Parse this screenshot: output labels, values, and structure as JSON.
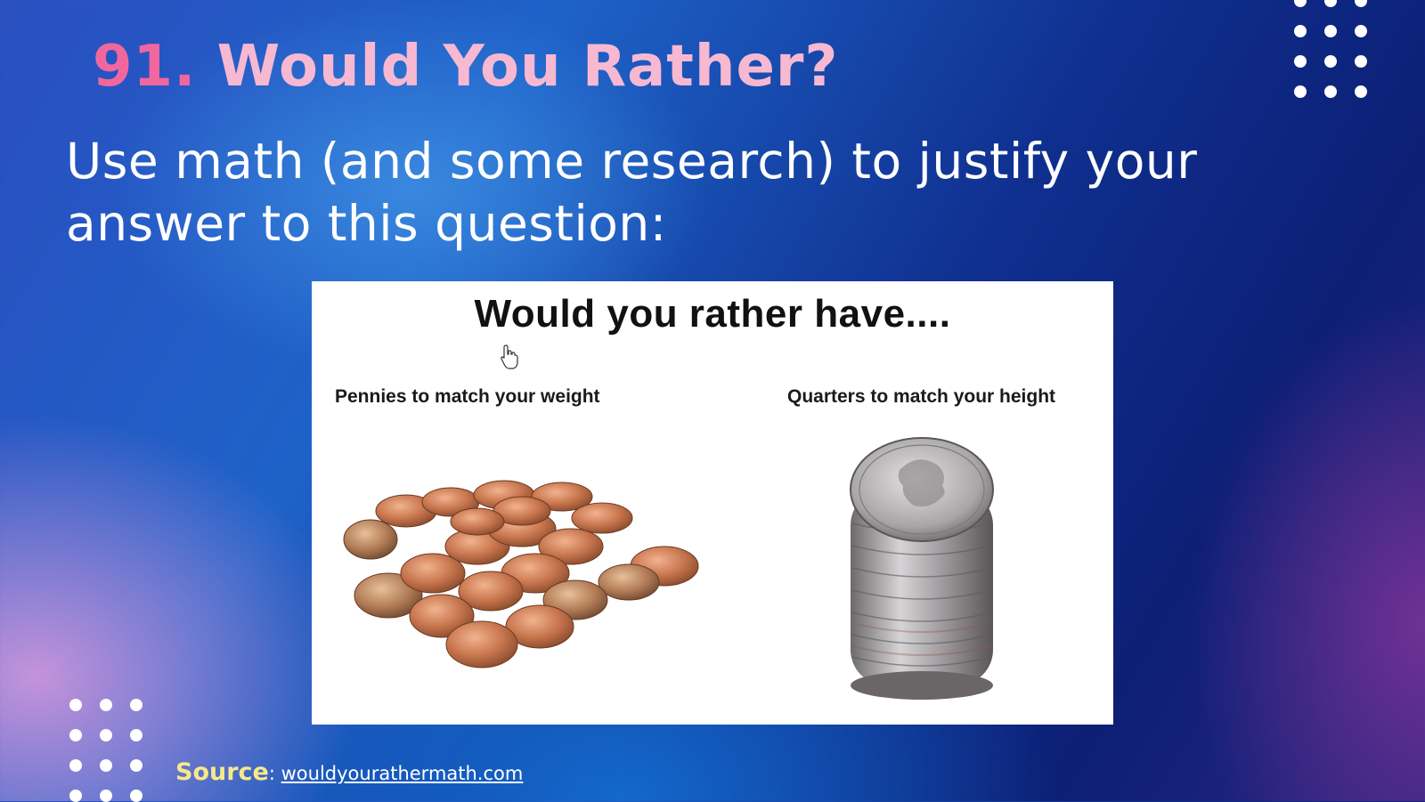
{
  "slide": {
    "title_number": "91.",
    "title_text": " Would You Rather?",
    "instruction": "Use math (and some research) to justify your answer to this question:"
  },
  "card": {
    "heading": "Would you rather have....",
    "left_option": "Pennies to match your weight",
    "right_option": "Quarters to match your height"
  },
  "source": {
    "label": "Source",
    "separator": ": ",
    "link_text": "wouldyourathermath.com"
  },
  "colors": {
    "title_number": "#f0679e",
    "title_text": "#f7b8d2",
    "source_label": "#f6e98a",
    "background_deep": "#0c1f75",
    "background_bright": "#1e62c8"
  },
  "icons": [
    "hand-cursor-icon"
  ]
}
